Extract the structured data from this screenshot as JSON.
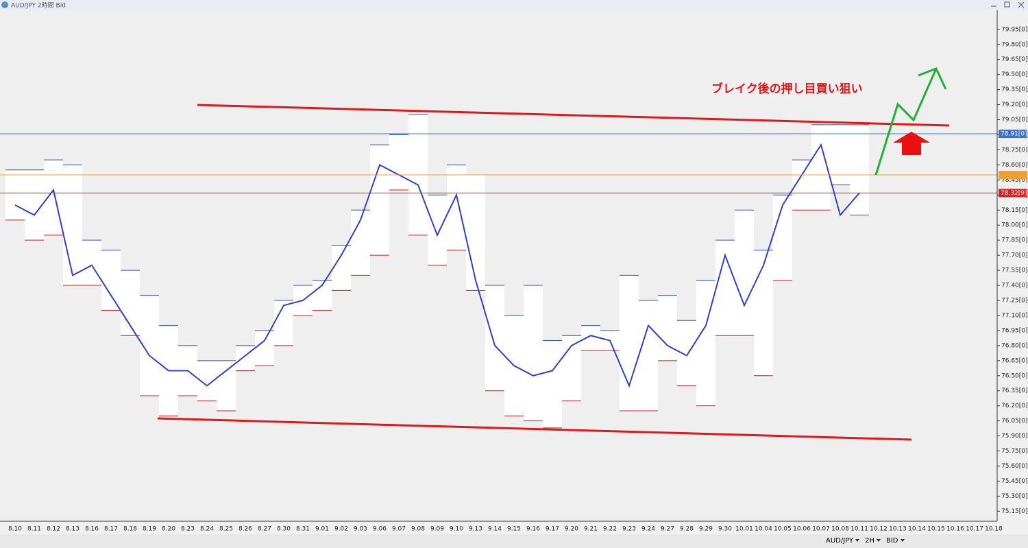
{
  "window": {
    "title": "AUD/JPY 2時間 Bid"
  },
  "chart_data": {
    "type": "candlestick",
    "categories": [
      "8.10",
      "8.11",
      "8.12",
      "8.13",
      "8.16",
      "8.17",
      "8.18",
      "8.19",
      "8.20",
      "8.23",
      "8.24",
      "8.25",
      "8.26",
      "8.27",
      "8.30",
      "8.31",
      "9.01",
      "9.02",
      "9.03",
      "9.06",
      "9.07",
      "9.08",
      "9.09",
      "9.10",
      "9.13",
      "9.14",
      "9.15",
      "9.16",
      "9.17",
      "9.20",
      "9.21",
      "9.22",
      "9.23",
      "9.24",
      "9.27",
      "9.28",
      "9.29",
      "9.30",
      "10.01",
      "10.04",
      "10.05",
      "10.06",
      "10.07",
      "10.08",
      "10.11",
      "10.12",
      "10.13",
      "10.14",
      "10.15",
      "10.16",
      "10.17",
      "10.18"
    ],
    "high": [
      78.55,
      78.55,
      78.65,
      78.6,
      77.85,
      77.75,
      77.55,
      77.3,
      77.0,
      76.8,
      76.65,
      76.65,
      76.8,
      76.95,
      77.25,
      77.4,
      77.45,
      77.8,
      78.15,
      78.8,
      78.9,
      79.1,
      78.3,
      78.6,
      78.5,
      77.4,
      77.1,
      77.4,
      76.85,
      76.9,
      77.0,
      76.95,
      77.5,
      77.25,
      77.3,
      77.05,
      77.45,
      77.85,
      78.15,
      77.75,
      78.3,
      78.65,
      79.0,
      79.0,
      79.0,
      null,
      null,
      null,
      null,
      null,
      null,
      null
    ],
    "low": [
      78.05,
      77.85,
      77.9,
      77.4,
      77.4,
      77.15,
      76.9,
      76.3,
      76.1,
      76.3,
      76.25,
      76.15,
      76.55,
      76.6,
      76.8,
      77.1,
      77.15,
      77.35,
      77.5,
      77.7,
      78.35,
      77.9,
      77.6,
      77.75,
      77.35,
      76.35,
      76.1,
      76.05,
      75.98,
      76.25,
      76.75,
      76.75,
      76.15,
      76.15,
      76.65,
      76.4,
      76.2,
      76.9,
      76.9,
      76.5,
      77.45,
      78.15,
      78.15,
      78.4,
      78.1,
      null,
      null,
      null,
      null,
      null,
      null,
      null
    ],
    "close": [
      78.2,
      78.1,
      78.35,
      77.5,
      77.6,
      77.3,
      77.0,
      76.7,
      76.55,
      76.55,
      76.4,
      76.55,
      76.7,
      76.85,
      77.2,
      77.25,
      77.4,
      77.7,
      78.05,
      78.6,
      78.5,
      78.4,
      77.9,
      78.3,
      77.45,
      76.8,
      76.6,
      76.5,
      76.55,
      76.8,
      76.9,
      76.85,
      76.4,
      77.0,
      76.8,
      76.7,
      77.0,
      77.7,
      77.2,
      77.6,
      78.2,
      78.5,
      78.8,
      78.1,
      78.32,
      null,
      null,
      null,
      null,
      null,
      null,
      null
    ],
    "high_color": "#2c4fc4",
    "low_color": "#c42020",
    "close_color": "#3040c8",
    "ylim": [
      75.05,
      80.14
    ],
    "yticks": [
      {
        "value": 75.15,
        "label": "75.15[0]"
      },
      {
        "value": 75.3,
        "label": "75.30[0]"
      },
      {
        "value": 75.45,
        "label": "75.45[0]"
      },
      {
        "value": 75.6,
        "label": "75.60[0]"
      },
      {
        "value": 75.75,
        "label": "75.75[0]"
      },
      {
        "value": 75.9,
        "label": "75.90[0]"
      },
      {
        "value": 76.05,
        "label": "76.05[0]"
      },
      {
        "value": 76.2,
        "label": "76.20[0]"
      },
      {
        "value": 76.35,
        "label": "76.35[0]"
      },
      {
        "value": 76.5,
        "label": "76.50[0]"
      },
      {
        "value": 76.65,
        "label": "76.65[0]"
      },
      {
        "value": 76.8,
        "label": "76.80[0]"
      },
      {
        "value": 76.95,
        "label": "76.95[0]"
      },
      {
        "value": 77.1,
        "label": "77.10[0]"
      },
      {
        "value": 77.25,
        "label": "77.25[0]"
      },
      {
        "value": 77.4,
        "label": "77.40[0]"
      },
      {
        "value": 77.55,
        "label": "77.55[0]"
      },
      {
        "value": 77.7,
        "label": "77.70[0]"
      },
      {
        "value": 77.85,
        "label": "77.85[0]"
      },
      {
        "value": 78.0,
        "label": "78.00[0]"
      },
      {
        "value": 78.15,
        "label": "78.15[0]"
      },
      {
        "value": 78.3,
        "label": "78.30[0]"
      },
      {
        "value": 78.45,
        "label": "78.45[0]"
      },
      {
        "value": 78.6,
        "label": "78.60[0]"
      },
      {
        "value": 78.75,
        "label": "78.75[0]"
      },
      {
        "value": 78.9,
        "label": "78.90[0]"
      },
      {
        "value": 79.05,
        "label": "79.05[0]"
      },
      {
        "value": 79.2,
        "label": "79.20[0]"
      },
      {
        "value": 79.35,
        "label": "79.35[0]"
      },
      {
        "value": 79.5,
        "label": "79.50[0]"
      },
      {
        "value": 79.65,
        "label": "79.65[0]"
      },
      {
        "value": 79.8,
        "label": "79.80[0]"
      },
      {
        "value": 79.95,
        "label": "79.95[0]"
      }
    ],
    "price_lines": [
      {
        "value": 78.91,
        "label": "78.91[0]",
        "color": "#3a6fd8"
      },
      {
        "value": 78.5,
        "color": "#f0a030"
      },
      {
        "value": 78.32,
        "label": "78.32[9]",
        "color": "#e02020"
      }
    ],
    "annotation": "ブレイク後の押し目買い狙い"
  },
  "toolbar": {
    "symbol": "AUD/JPY",
    "timeframe": "2H",
    "price": "BID"
  }
}
